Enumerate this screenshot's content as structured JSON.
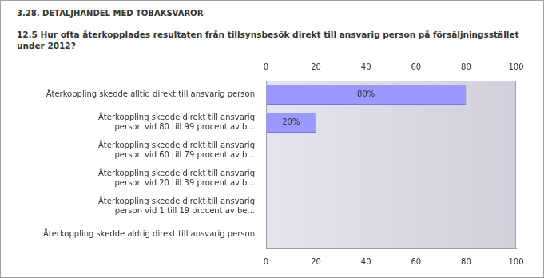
{
  "chart_data": {
    "type": "bar",
    "orientation": "horizontal",
    "title": "3.28. DETALJHANDEL MED TOBAKSVAROR",
    "subtitle": "12.5 Hur ofta återkopplades resultaten från tillsynsbesök direkt till ansvarig person på försäljningsstället under 2012?",
    "categories": [
      "Återkoppling skedde alltid direkt till ansvarig person",
      "Återkoppling skedde direkt till ansvarig person vid 80 till 99 procent av b...",
      "Återkoppling skedde direkt till ansvarig person vid 60 till 79 procent av b...",
      "Återkoppling skedde direkt till ansvarig person vid 20 till 39 procent av b...",
      "Återkoppling skedde direkt till ansvarig person vid 1 till 19 procent av be...",
      "Återkoppling skedde aldrig direkt till ansvarig person"
    ],
    "values": [
      80,
      20,
      0,
      0,
      0,
      0
    ],
    "data_labels": true,
    "value_labels": [
      "80%",
      "20%",
      null,
      null,
      null,
      null
    ],
    "color": "#9999ff",
    "xlim": [
      0,
      100
    ],
    "xticks": [
      0,
      20,
      40,
      60,
      80,
      100
    ],
    "grid": false
  }
}
